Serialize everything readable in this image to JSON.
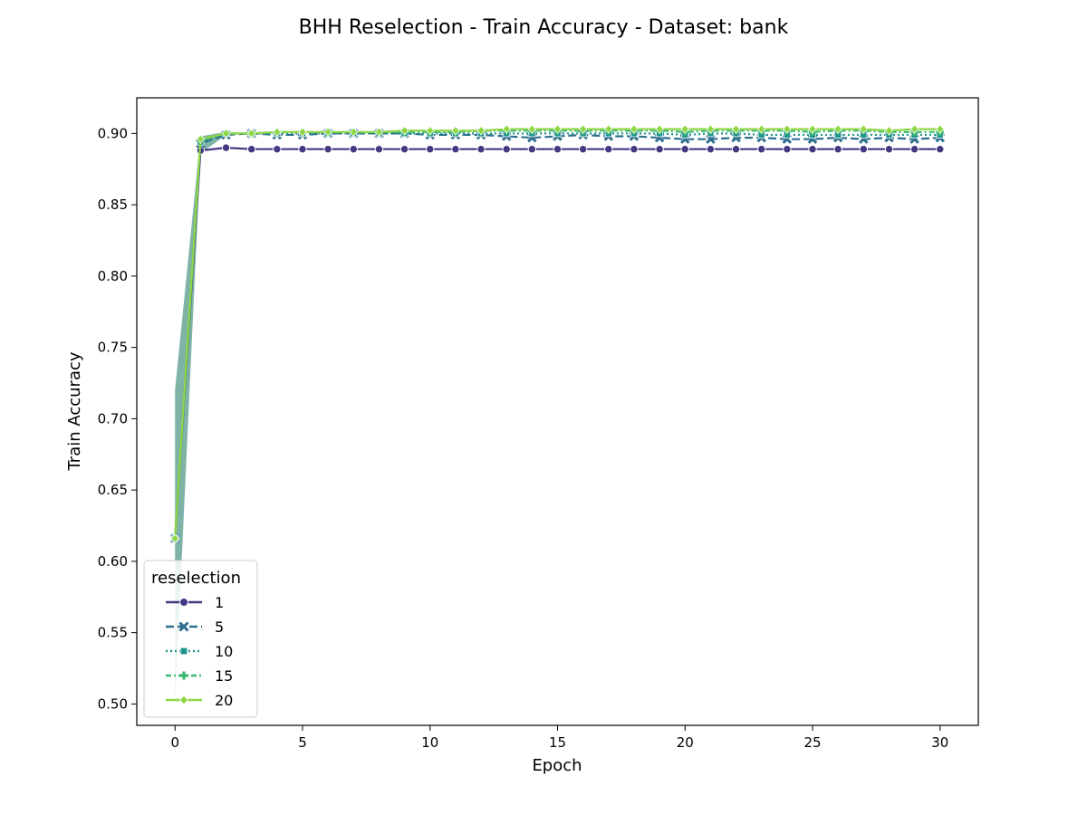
{
  "chart_data": {
    "type": "line",
    "title": "BHH Reselection - Train Accuracy - Dataset: bank",
    "xlabel": "Epoch",
    "ylabel": "Train Accuracy",
    "xlim": [
      -1.5,
      31.5
    ],
    "ylim": [
      0.485,
      0.925
    ],
    "xticks": [
      0,
      5,
      10,
      15,
      20,
      25,
      30
    ],
    "yticks": [
      0.5,
      0.55,
      0.6,
      0.65,
      0.7,
      0.75,
      0.8,
      0.85,
      0.9
    ],
    "ytick_labels": [
      "0.50",
      "0.55",
      "0.60",
      "0.65",
      "0.70",
      "0.75",
      "0.80",
      "0.85",
      "0.90"
    ],
    "xtick_labels": [
      "0",
      "5",
      "10",
      "15",
      "20",
      "25",
      "30"
    ],
    "grid": false,
    "legend": {
      "title": "reselection",
      "position": "lower-left"
    },
    "band": {
      "epoch0_low": 0.5,
      "epoch0_high": 0.72,
      "color": "#3b8a78"
    },
    "x": [
      0,
      1,
      2,
      3,
      4,
      5,
      6,
      7,
      8,
      9,
      10,
      11,
      12,
      13,
      14,
      15,
      16,
      17,
      18,
      19,
      20,
      21,
      22,
      23,
      24,
      25,
      26,
      27,
      28,
      29,
      30
    ],
    "series": [
      {
        "name": "1",
        "color": "#433983",
        "marker": "circle",
        "dash": "",
        "values": [
          0.616,
          0.888,
          0.89,
          0.889,
          0.889,
          0.889,
          0.889,
          0.889,
          0.889,
          0.889,
          0.889,
          0.889,
          0.889,
          0.889,
          0.889,
          0.889,
          0.889,
          0.889,
          0.889,
          0.889,
          0.889,
          0.889,
          0.889,
          0.889,
          0.889,
          0.889,
          0.889,
          0.889,
          0.889,
          0.889,
          0.889
        ]
      },
      {
        "name": "5",
        "color": "#2d6f8e",
        "marker": "x",
        "dash": "9,4",
        "values": [
          0.616,
          0.893,
          0.899,
          0.9,
          0.899,
          0.899,
          0.9,
          0.9,
          0.9,
          0.9,
          0.899,
          0.899,
          0.899,
          0.898,
          0.897,
          0.898,
          0.899,
          0.898,
          0.898,
          0.897,
          0.896,
          0.896,
          0.897,
          0.897,
          0.896,
          0.896,
          0.897,
          0.896,
          0.897,
          0.896,
          0.897
        ]
      },
      {
        "name": "10",
        "color": "#20938b",
        "marker": "square",
        "dash": "2,3",
        "values": [
          0.616,
          0.894,
          0.9,
          0.9,
          0.9,
          0.9,
          0.9,
          0.9,
          0.9,
          0.9,
          0.9,
          0.9,
          0.9,
          0.9,
          0.9,
          0.9,
          0.9,
          0.9,
          0.9,
          0.9,
          0.899,
          0.9,
          0.9,
          0.899,
          0.899,
          0.899,
          0.899,
          0.899,
          0.899,
          0.899,
          0.899
        ]
      },
      {
        "name": "15",
        "color": "#3ab973",
        "marker": "plus",
        "dash": "6,3,2,3",
        "values": [
          0.616,
          0.895,
          0.9,
          0.9,
          0.901,
          0.901,
          0.901,
          0.901,
          0.901,
          0.901,
          0.901,
          0.901,
          0.902,
          0.902,
          0.902,
          0.902,
          0.902,
          0.902,
          0.902,
          0.902,
          0.901,
          0.902,
          0.902,
          0.902,
          0.902,
          0.901,
          0.902,
          0.902,
          0.901,
          0.901,
          0.901
        ]
      },
      {
        "name": "20",
        "color": "#8fd645",
        "marker": "diamond",
        "dash": "",
        "values": [
          0.616,
          0.896,
          0.9,
          0.9,
          0.901,
          0.901,
          0.901,
          0.901,
          0.901,
          0.902,
          0.902,
          0.902,
          0.902,
          0.903,
          0.903,
          0.903,
          0.903,
          0.903,
          0.903,
          0.903,
          0.903,
          0.903,
          0.903,
          0.903,
          0.903,
          0.903,
          0.903,
          0.903,
          0.902,
          0.903,
          0.903
        ]
      }
    ]
  }
}
